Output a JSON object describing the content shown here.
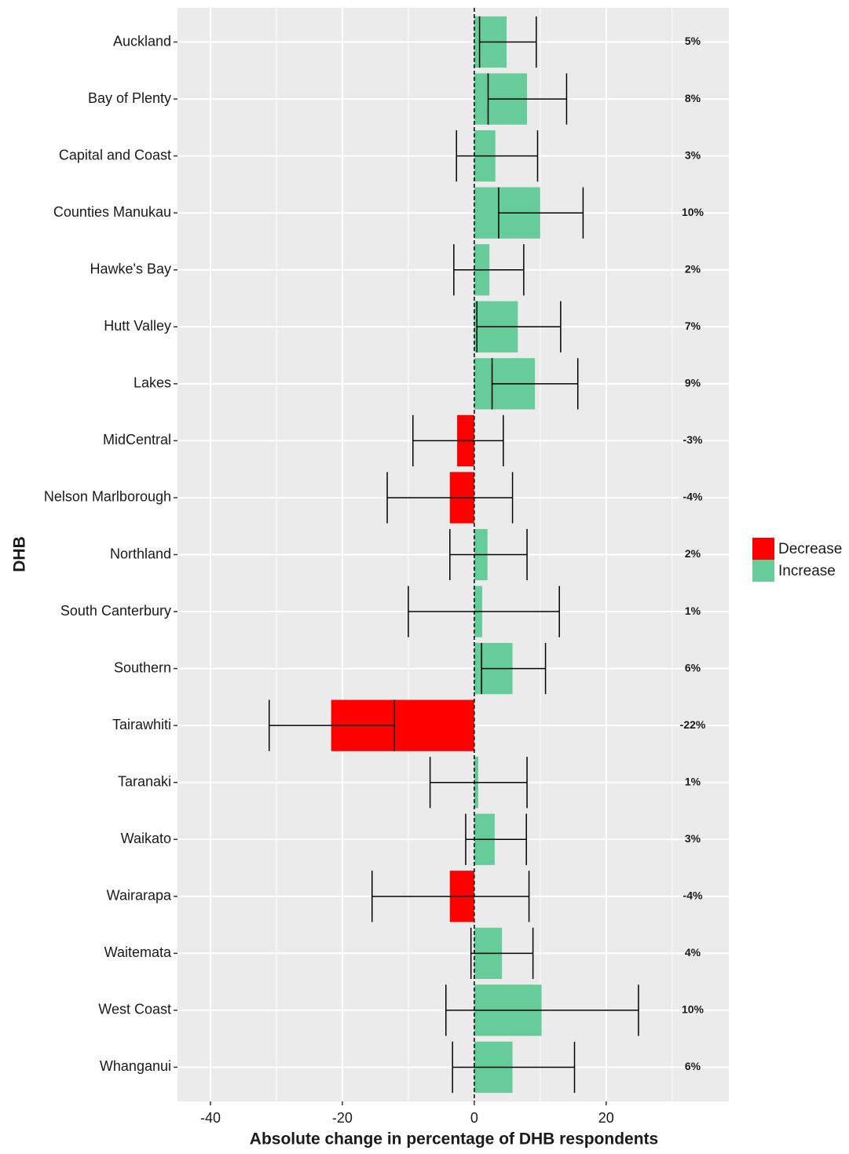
{
  "chart_data": {
    "type": "bar",
    "orientation": "horizontal",
    "x_label": "Absolute change in percentage of DHB respondents",
    "y_label": "DHB",
    "categories": [
      "Auckland",
      "Bay of Plenty",
      "Capital and Coast",
      "Counties Manukau",
      "Hawke's Bay",
      "Hutt Valley",
      "Lakes",
      "MidCentral",
      "Nelson Marlborough",
      "Northland",
      "South Canterbury",
      "Southern",
      "Tairawhiti",
      "Taranaki",
      "Waikato",
      "Wairarapa",
      "Waitemata",
      "West Coast",
      "Whanganui"
    ],
    "values": [
      4.9,
      8.0,
      3.2,
      10.0,
      2.3,
      6.6,
      9.2,
      -2.6,
      -3.7,
      2.0,
      1.2,
      5.8,
      -21.7,
      0.6,
      3.1,
      -3.7,
      4.2,
      10.2,
      5.8
    ],
    "value_labels": [
      "5%",
      "8%",
      "3%",
      "10%",
      "2%",
      "7%",
      "9%",
      "-3%",
      "-4%",
      "2%",
      "1%",
      "6%",
      "-22%",
      "1%",
      "3%",
      "-4%",
      "4%",
      "10%",
      "6%"
    ],
    "lower": [
      0.8,
      2.1,
      -2.7,
      3.7,
      -3.1,
      0.4,
      2.7,
      -9.3,
      -13.2,
      -3.7,
      -10.0,
      1.1,
      -31.1,
      -6.7,
      -1.3,
      -15.5,
      -0.5,
      -4.3,
      -3.3
    ],
    "upper": [
      9.4,
      14.0,
      9.6,
      16.5,
      7.5,
      13.1,
      15.7,
      4.4,
      5.8,
      8.0,
      12.9,
      10.8,
      -12.1,
      8.0,
      7.9,
      8.3,
      8.9,
      24.9,
      15.2
    ],
    "legend": [
      {
        "name": "Decrease",
        "color": "#ff0000"
      },
      {
        "name": "Increase",
        "color": "#66cc99"
      }
    ],
    "xlim": [
      -45,
      38.6
    ],
    "xticks": [
      -40,
      -20,
      0,
      20
    ],
    "xminorticks": [
      -30,
      -10,
      10,
      30
    ],
    "vline": 0,
    "grid": true
  }
}
